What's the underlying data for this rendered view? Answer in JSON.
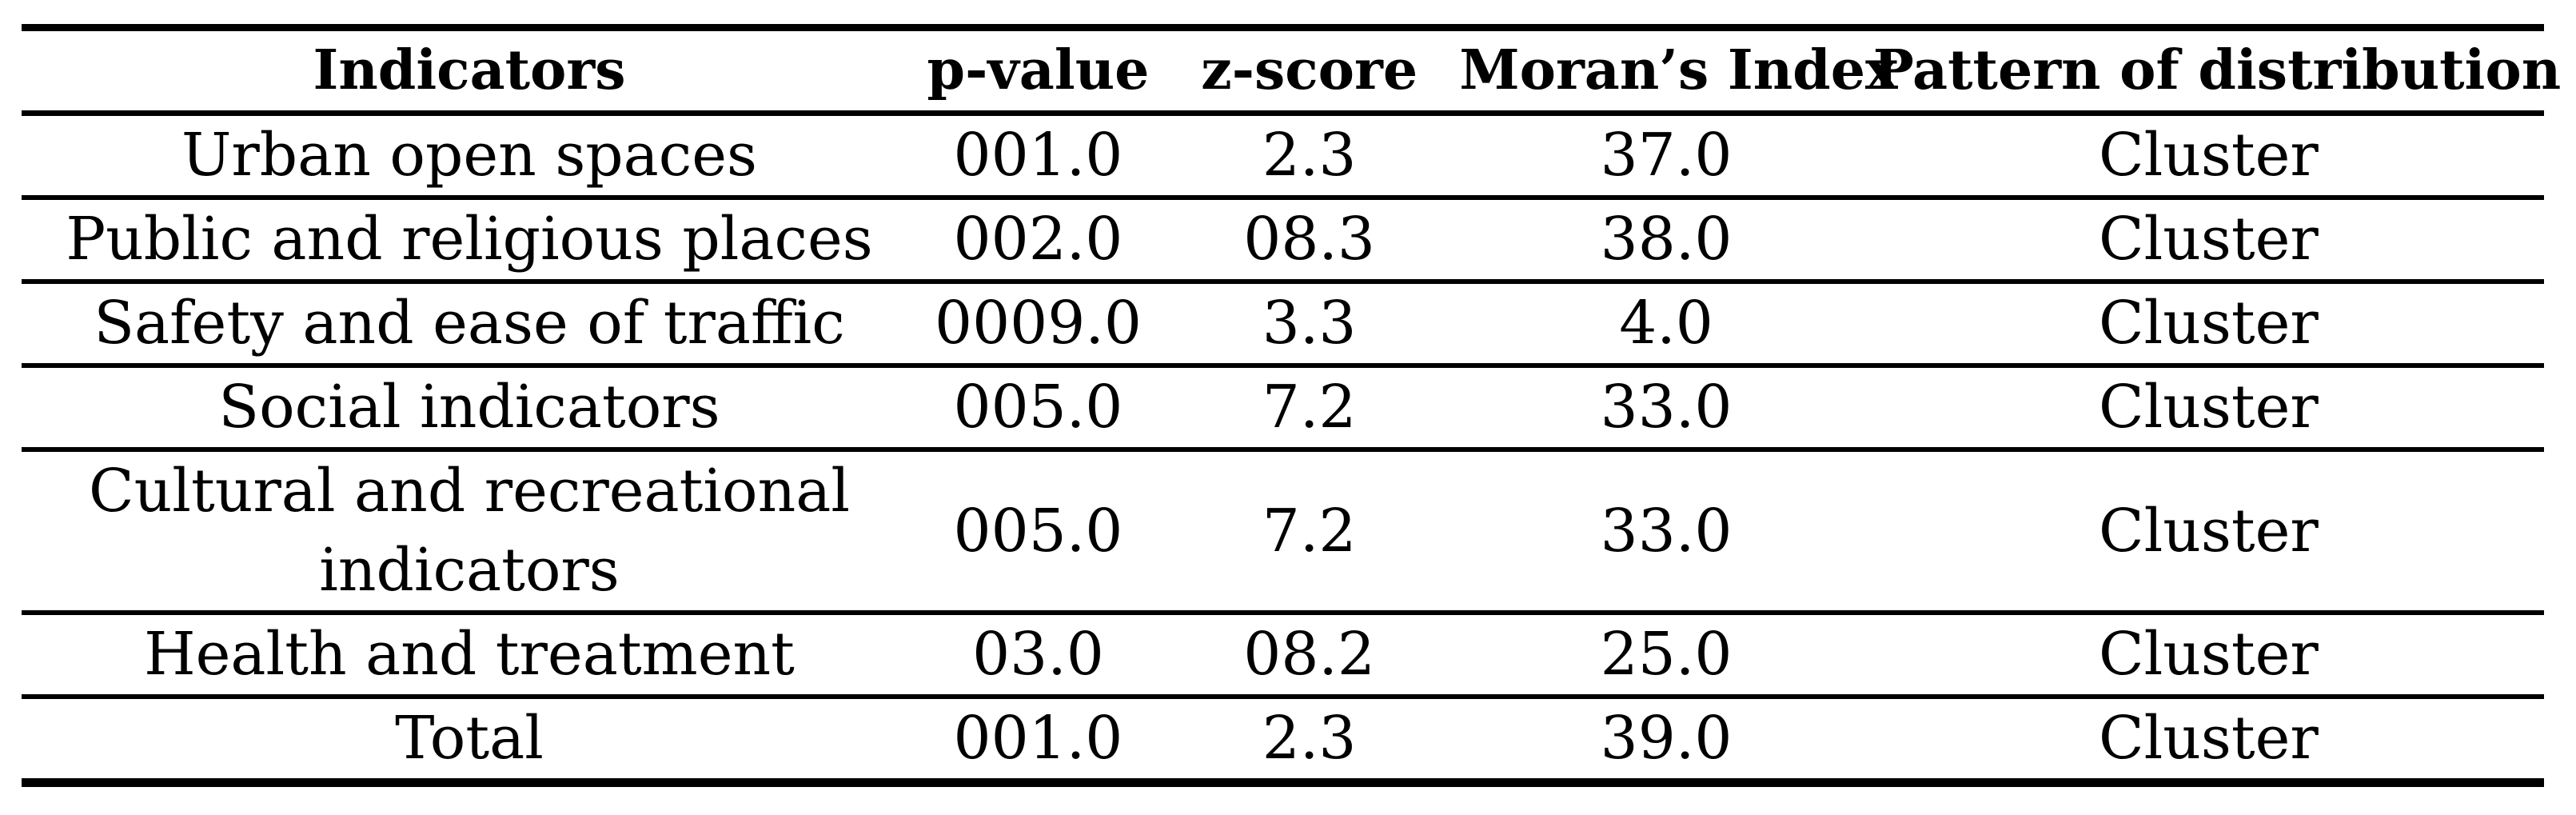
{
  "page": {
    "background_color": "#ffffff",
    "text_color": "#000000"
  },
  "table": {
    "columns": [
      {
        "key": "indicator",
        "label": "Indicators"
      },
      {
        "key": "p_value",
        "label": "p-value"
      },
      {
        "key": "z_score",
        "label": "z-score"
      },
      {
        "key": "morans_index",
        "label": "Moran’s Index"
      },
      {
        "key": "pattern",
        "label": "Pattern of distribution"
      }
    ],
    "rows": [
      {
        "indicator": "Urban open spaces",
        "p_value": "001.0",
        "z_score": "2.3",
        "morans_index": "37.0",
        "pattern": "Cluster"
      },
      {
        "indicator": "Public and religious places",
        "p_value": "002.0",
        "z_score": "08.3",
        "morans_index": "38.0",
        "pattern": "Cluster"
      },
      {
        "indicator": "Safety and ease of traffic",
        "p_value": "0009.0",
        "z_score": "3.3",
        "morans_index": "4.0",
        "pattern": "Cluster"
      },
      {
        "indicator": "Social indicators",
        "p_value": "005.0",
        "z_score": "7.2",
        "morans_index": "33.0",
        "pattern": "Cluster"
      },
      {
        "indicator": "Cultural and recreational indicators",
        "p_value": "005.0",
        "z_score": "7.2",
        "morans_index": "33.0",
        "pattern": "Cluster"
      },
      {
        "indicator": "Health and treatment",
        "p_value": "03.0",
        "z_score": "08.2",
        "morans_index": "25.0",
        "pattern": "Cluster"
      },
      {
        "indicator": "Total",
        "p_value": "001.0",
        "z_score": "2.3",
        "morans_index": "39.0",
        "pattern": "Cluster"
      }
    ]
  }
}
